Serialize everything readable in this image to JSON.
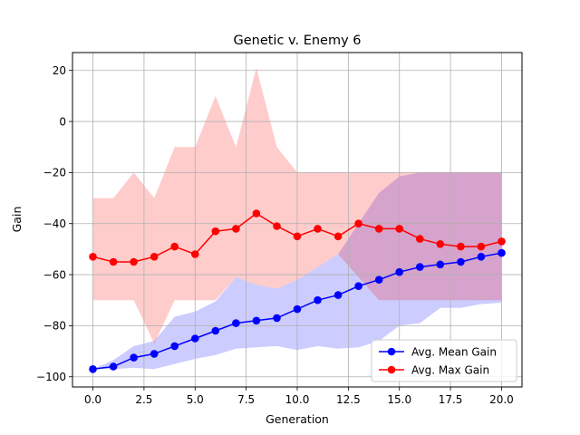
{
  "chart_data": {
    "type": "line",
    "title": "Genetic v. Enemy 6",
    "xlabel": "Generation",
    "ylabel": "Gain",
    "xlim": [
      -1,
      21
    ],
    "ylim": [
      -104,
      27
    ],
    "xticks": [
      0,
      2.5,
      5,
      7.5,
      10,
      12.5,
      15,
      17.5,
      20
    ],
    "xtick_labels": [
      "0.0",
      "2.5",
      "5.0",
      "7.5",
      "10.0",
      "12.5",
      "15.0",
      "17.5",
      "20.0"
    ],
    "yticks": [
      -100,
      -80,
      -60,
      -40,
      -20,
      0,
      20
    ],
    "ytick_labels": [
      "−100",
      "−80",
      "−60",
      "−40",
      "−20",
      "0",
      "20"
    ],
    "grid": true,
    "legend_position": "bottom-right",
    "x": [
      0,
      1,
      2,
      3,
      4,
      5,
      6,
      7,
      8,
      9,
      10,
      11,
      12,
      13,
      14,
      15,
      16,
      17,
      18,
      19,
      20
    ],
    "series": [
      {
        "name": "Avg. Mean Gain",
        "color": "#0000ff",
        "fill_color": "#0000ff",
        "values": [
          -97,
          -96,
          -92.5,
          -91,
          -88,
          -85,
          -82,
          -79,
          -78,
          -77,
          -73.5,
          -70,
          -68,
          -64.5,
          -62,
          -59,
          -57,
          -56,
          -55,
          -53,
          -51.5
        ],
        "band_low": [
          -97,
          -97,
          -96.5,
          -97,
          -95,
          -93,
          -91.5,
          -89,
          -88.5,
          -88,
          -89.5,
          -88,
          -89,
          -88.5,
          -86,
          -80,
          -79,
          -73,
          -73,
          -71.5,
          -71
        ],
        "band_high": [
          -97,
          -93.5,
          -88,
          -86,
          -76.5,
          -74.5,
          -70.5,
          -61,
          -64,
          -65.5,
          -62,
          -57,
          -52,
          -40,
          -28,
          -21.5,
          -20,
          -20,
          -20,
          -20,
          -20
        ]
      },
      {
        "name": "Avg. Max Gain",
        "color": "#ff0000",
        "fill_color": "#ff0000",
        "values": [
          -53,
          -55,
          -55,
          -53,
          -49,
          -52,
          -43,
          -42,
          -36,
          -41,
          -45,
          -42,
          -45,
          -40,
          -42,
          -42,
          -46,
          -48,
          -49,
          -49,
          -47
        ],
        "band_low": [
          -70,
          -70,
          -70,
          -87,
          -70,
          -70,
          -70,
          -61,
          -64,
          -65.5,
          -62,
          -57,
          -52,
          -61,
          -70,
          -70,
          -70,
          -70,
          -70,
          -70,
          -70
        ],
        "band_high": [
          -30,
          -30,
          -20,
          -30,
          -10,
          -10,
          10,
          -10,
          21,
          -10,
          -20,
          -20,
          -20,
          -20,
          -20,
          -20,
          -20,
          -20,
          -20,
          -20,
          -20
        ]
      }
    ]
  }
}
